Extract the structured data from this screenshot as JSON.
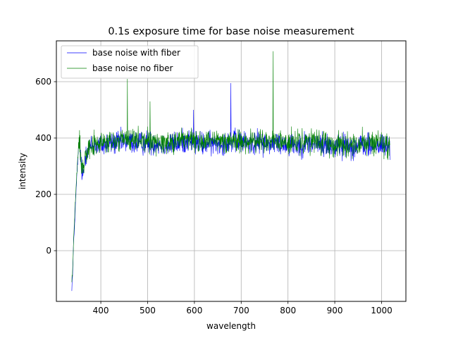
{
  "chart_data": {
    "type": "line",
    "title": "0.1s exposure time for base noise measurement",
    "xlabel": "wavelength",
    "ylabel": "intensity",
    "xlim": [
      305,
      1052
    ],
    "ylim": [
      -180,
      745
    ],
    "xticks": [
      400,
      500,
      600,
      700,
      800,
      900,
      1000
    ],
    "yticks": [
      0,
      200,
      400,
      600
    ],
    "grid": true,
    "legend_position": "upper-left",
    "series": [
      {
        "name": "base noise with fiber",
        "color": "#0000ff",
        "x": [
          338,
          340,
          342,
          344,
          346,
          348,
          350,
          352,
          355,
          358,
          362,
          366,
          370,
          380,
          400,
          420,
          440,
          457,
          480,
          500,
          520,
          540,
          560,
          580,
          590,
          600,
          620,
          640,
          660,
          678,
          700,
          720,
          740,
          760,
          768,
          780,
          800,
          820,
          840,
          860,
          880,
          900,
          920,
          940,
          960,
          980,
          1000,
          1010,
          1018
        ],
        "y": [
          -130,
          -80,
          40,
          90,
          170,
          240,
          300,
          350,
          380,
          300,
          260,
          330,
          360,
          370,
          375,
          380,
          385,
          390,
          380,
          385,
          380,
          375,
          380,
          390,
          395,
          385,
          380,
          380,
          385,
          390,
          385,
          380,
          385,
          380,
          385,
          380,
          380,
          375,
          380,
          380,
          375,
          370,
          375,
          370,
          375,
          370,
          375,
          370,
          360
        ],
        "spikes": [
          [
            678,
            595
          ],
          [
            598,
            500
          ]
        ]
      },
      {
        "name": "base noise no fiber",
        "color": "#008000",
        "x": [
          338,
          340,
          342,
          344,
          346,
          348,
          350,
          352,
          355,
          358,
          362,
          366,
          370,
          380,
          400,
          420,
          440,
          457,
          480,
          500,
          520,
          540,
          560,
          580,
          590,
          600,
          620,
          640,
          660,
          678,
          700,
          720,
          740,
          760,
          768,
          780,
          800,
          820,
          840,
          860,
          880,
          900,
          920,
          940,
          960,
          980,
          1000,
          1010,
          1018
        ],
        "y": [
          -110,
          -60,
          50,
          120,
          190,
          250,
          310,
          360,
          390,
          320,
          280,
          345,
          365,
          375,
          380,
          385,
          390,
          395,
          390,
          390,
          385,
          385,
          390,
          395,
          400,
          390,
          385,
          385,
          390,
          390,
          390,
          385,
          390,
          385,
          390,
          385,
          385,
          380,
          385,
          385,
          380,
          380,
          380,
          375,
          380,
          380,
          380,
          375,
          365
        ],
        "spikes": [
          [
            457,
            610
          ],
          [
            505,
            530
          ],
          [
            768,
            708
          ]
        ]
      }
    ]
  }
}
